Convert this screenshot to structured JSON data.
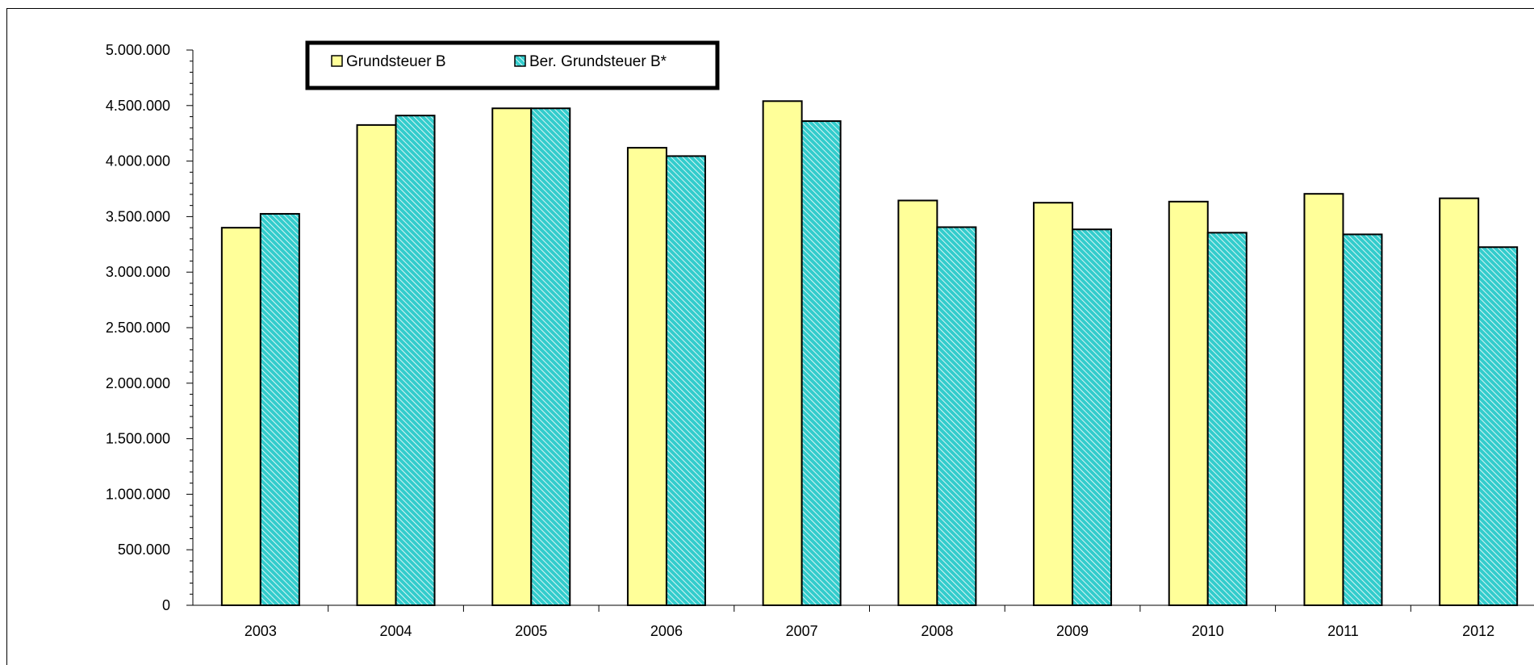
{
  "chart_data": {
    "type": "bar",
    "categories": [
      "2003",
      "2004",
      "2005",
      "2006",
      "2007",
      "2008",
      "2009",
      "2010",
      "2011",
      "2012"
    ],
    "series": [
      {
        "name": "Grundsteuer B",
        "color": "#FFFF99",
        "values": [
          3400000,
          4325000,
          4475000,
          4120000,
          4540000,
          3645000,
          3625000,
          3635000,
          3705000,
          3665000
        ]
      },
      {
        "name": "Ber. Grundsteuer B*",
        "color": "#33CCCC",
        "pattern": "diagonal-hatch",
        "values": [
          3525000,
          4410000,
          4475000,
          4045000,
          4360000,
          3405000,
          3385000,
          3355000,
          3340000,
          3225000
        ]
      }
    ],
    "yticks": [
      "0",
      "500.000",
      "1.000.000",
      "1.500.000",
      "2.000.000",
      "2.500.000",
      "3.000.000",
      "3.500.000",
      "4.000.000",
      "4.500.000",
      "5.000.000"
    ],
    "ylim": [
      0,
      5000000
    ],
    "ytick_step": 500000,
    "legend_position": "top-left",
    "grid": false
  }
}
